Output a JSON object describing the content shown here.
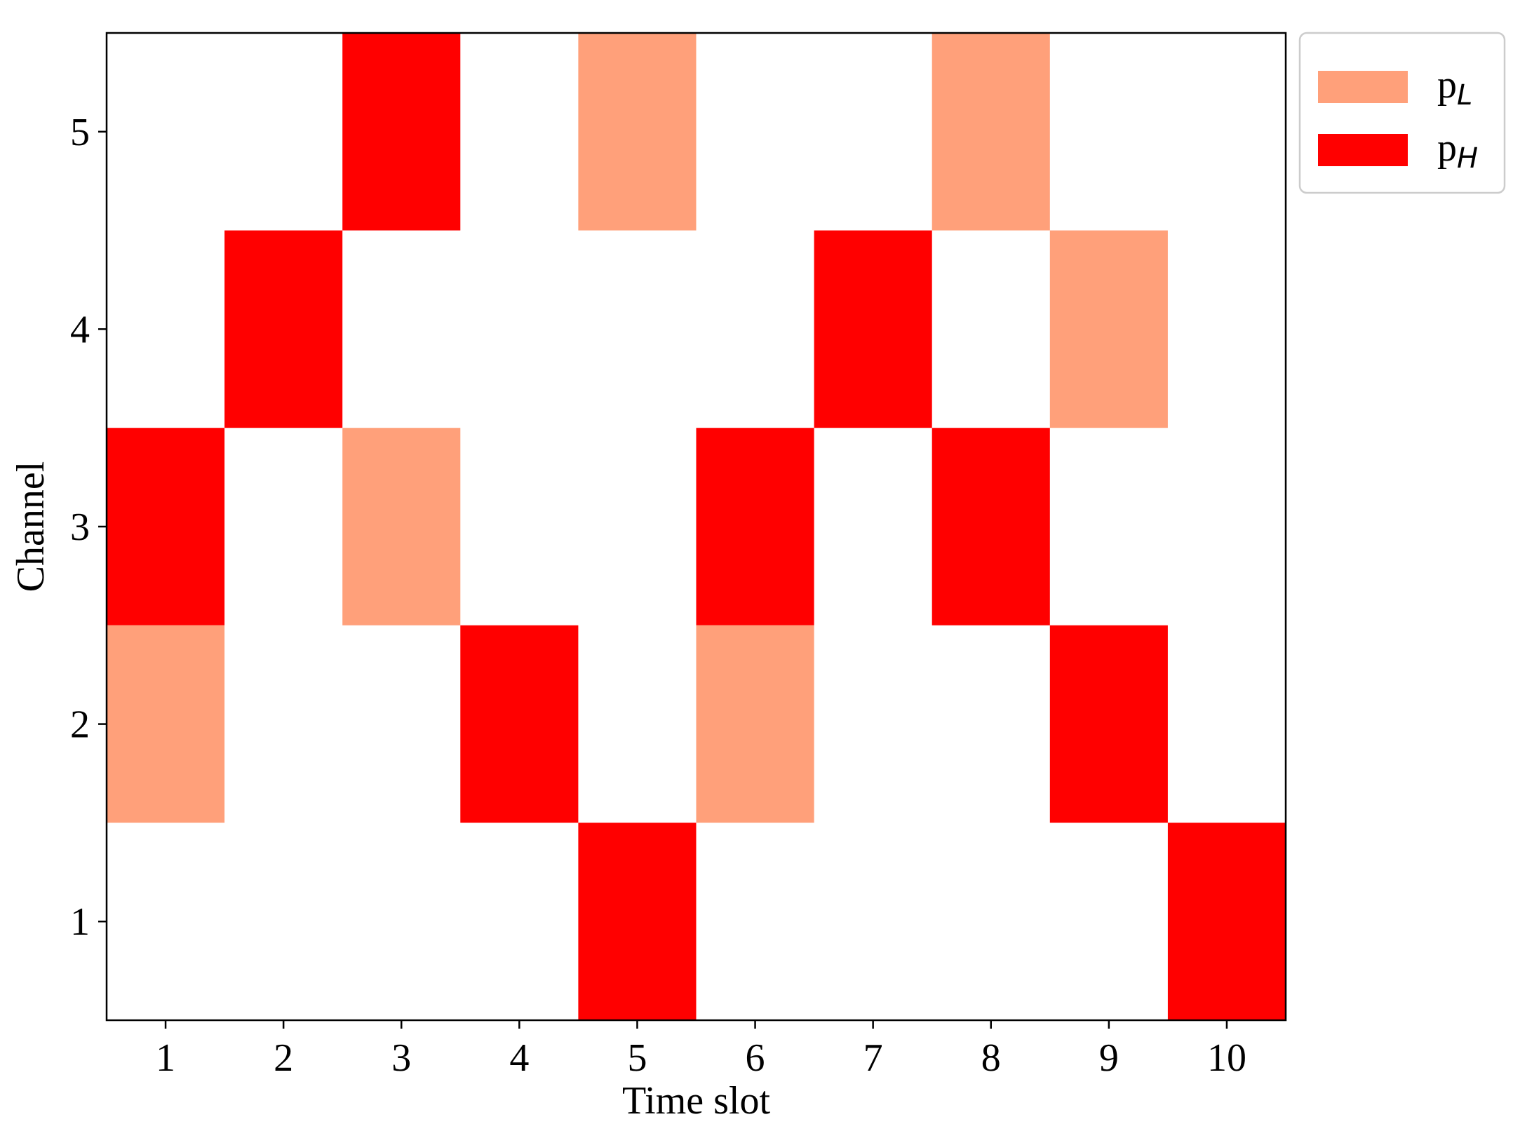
{
  "chart_data": {
    "type": "heatmap",
    "xlabel": "Time slot",
    "ylabel": "Channel",
    "x_categories": [
      1,
      2,
      3,
      4,
      5,
      6,
      7,
      8,
      9,
      10
    ],
    "y_categories": [
      1,
      2,
      3,
      4,
      5
    ],
    "x_tick_labels": [
      "1",
      "2",
      "3",
      "4",
      "5",
      "6",
      "7",
      "8",
      "9",
      "10"
    ],
    "y_tick_labels": [
      "1",
      "2",
      "3",
      "4",
      "5"
    ],
    "xlim": [
      0.5,
      10.5
    ],
    "ylim": [
      0.5,
      5.5
    ],
    "grid": false,
    "legend_position": "outside top-right",
    "legend": [
      {
        "key": "pL",
        "base": "p",
        "sub": "L",
        "color": "#ffa07a"
      },
      {
        "key": "pH",
        "base": "p",
        "sub": "H",
        "color": "#ff0000"
      }
    ],
    "cells": [
      {
        "time_slot": 1,
        "channel": 3,
        "level": "pH"
      },
      {
        "time_slot": 1,
        "channel": 2,
        "level": "pL"
      },
      {
        "time_slot": 2,
        "channel": 4,
        "level": "pH"
      },
      {
        "time_slot": 3,
        "channel": 5,
        "level": "pH"
      },
      {
        "time_slot": 3,
        "channel": 3,
        "level": "pL"
      },
      {
        "time_slot": 4,
        "channel": 2,
        "level": "pH"
      },
      {
        "time_slot": 5,
        "channel": 5,
        "level": "pL"
      },
      {
        "time_slot": 5,
        "channel": 1,
        "level": "pH"
      },
      {
        "time_slot": 6,
        "channel": 3,
        "level": "pH"
      },
      {
        "time_slot": 6,
        "channel": 2,
        "level": "pL"
      },
      {
        "time_slot": 7,
        "channel": 4,
        "level": "pH"
      },
      {
        "time_slot": 8,
        "channel": 5,
        "level": "pL"
      },
      {
        "time_slot": 8,
        "channel": 3,
        "level": "pH"
      },
      {
        "time_slot": 9,
        "channel": 4,
        "level": "pL"
      },
      {
        "time_slot": 9,
        "channel": 2,
        "level": "pH"
      },
      {
        "time_slot": 10,
        "channel": 1,
        "level": "pH"
      }
    ]
  }
}
